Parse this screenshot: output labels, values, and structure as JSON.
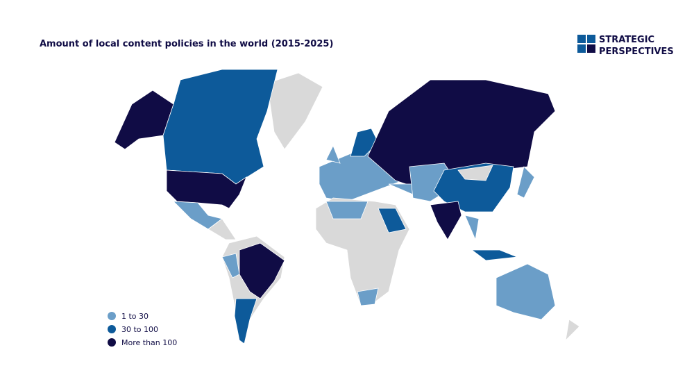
{
  "header": {
    "title": "Amount of local content policies in the world (2015-2025)"
  },
  "logo": {
    "lines": [
      "STRATEGIC",
      "PERSPECTIVES"
    ]
  },
  "legend": {
    "items": [
      {
        "label": "1 to 30",
        "color": "#6b9ec8"
      },
      {
        "label": "30 to 100",
        "color": "#0d5a9a"
      },
      {
        "label": "More than 100",
        "color": "#100c45"
      }
    ]
  }
}
